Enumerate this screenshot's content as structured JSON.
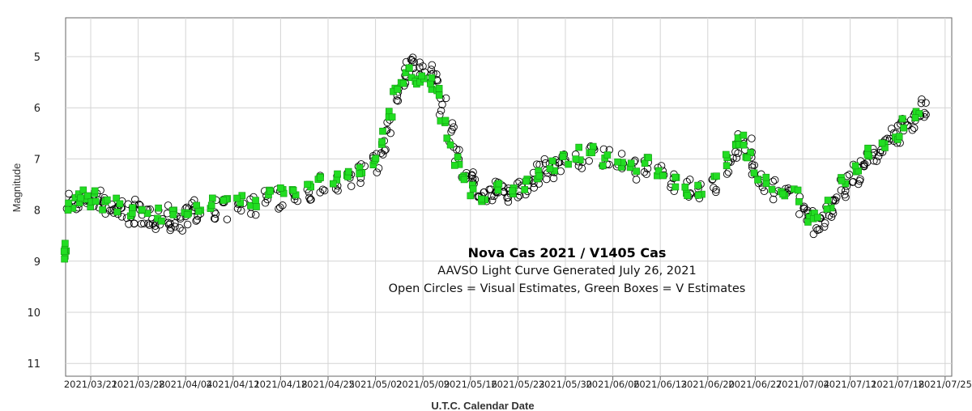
{
  "chart_data": {
    "type": "scatter",
    "title": "Nova Cas 2021 / V1405 Cas",
    "subtitle": "AAVSO Light Curve Generated July 26, 2021",
    "legend_text": "Open Circles = Visual Estimates, Green Boxes = V Estimates",
    "xlabel": "U.T.C. Calendar Date",
    "ylabel": "Magnitude",
    "y_inverted": true,
    "ylim": [
      11.3,
      4.4
    ],
    "xlim": [
      "2021-03-17",
      "2021-07-22"
    ],
    "grid": true,
    "y_ticks": [
      5,
      6,
      7,
      8,
      9,
      10,
      11
    ],
    "x_ticks": [
      "2021/03/21",
      "2021/03/28",
      "2021/04/04",
      "2021/04/11",
      "2021/04/18",
      "2021/04/25",
      "2021/05/02",
      "2021/05/09",
      "2021/05/16",
      "2021/05/23",
      "2021/05/30",
      "2021/06/06",
      "2021/06/13",
      "2021/06/20",
      "2021/06/27",
      "2021/07/04",
      "2021/07/11",
      "2021/07/18",
      "2021/07/25"
    ],
    "series": [
      {
        "name": "Visual Estimates",
        "marker": "open-circle",
        "color": "#000000",
        "points": [
          [
            "2021-03-18",
            7.8
          ],
          [
            "2021-03-19",
            7.9
          ],
          [
            "2021-03-20",
            7.7
          ],
          [
            "2021-03-21",
            7.9
          ],
          [
            "2021-03-22",
            7.8
          ],
          [
            "2021-03-23",
            7.9
          ],
          [
            "2021-03-24",
            8.0
          ],
          [
            "2021-03-25",
            8.0
          ],
          [
            "2021-03-26",
            8.0
          ],
          [
            "2021-03-27",
            8.1
          ],
          [
            "2021-03-28",
            8.0
          ],
          [
            "2021-03-29",
            8.1
          ],
          [
            "2021-03-30",
            8.1
          ],
          [
            "2021-03-31",
            8.2
          ],
          [
            "2021-04-01",
            8.1
          ],
          [
            "2021-04-02",
            8.3
          ],
          [
            "2021-04-03",
            8.2
          ],
          [
            "2021-04-04",
            8.1
          ],
          [
            "2021-04-05",
            8.0
          ],
          [
            "2021-04-06",
            8.1
          ],
          [
            "2021-04-08",
            8.0
          ],
          [
            "2021-04-10",
            8.0
          ],
          [
            "2021-04-12",
            7.9
          ],
          [
            "2021-04-14",
            7.9
          ],
          [
            "2021-04-16",
            7.8
          ],
          [
            "2021-04-18",
            7.8
          ],
          [
            "2021-04-20",
            7.7
          ],
          [
            "2021-04-22",
            7.6
          ],
          [
            "2021-04-24",
            7.5
          ],
          [
            "2021-04-26",
            7.5
          ],
          [
            "2021-04-28",
            7.4
          ],
          [
            "2021-04-30",
            7.3
          ],
          [
            "2021-05-02",
            7.1
          ],
          [
            "2021-05-03",
            6.8
          ],
          [
            "2021-05-04",
            6.4
          ],
          [
            "2021-05-05",
            5.8
          ],
          [
            "2021-05-06",
            5.4
          ],
          [
            "2021-05-07",
            5.2
          ],
          [
            "2021-05-08",
            5.3
          ],
          [
            "2021-05-09",
            5.3
          ],
          [
            "2021-05-10",
            5.3
          ],
          [
            "2021-05-11",
            5.5
          ],
          [
            "2021-05-12",
            6.0
          ],
          [
            "2021-05-13",
            6.5
          ],
          [
            "2021-05-14",
            6.9
          ],
          [
            "2021-05-15",
            7.2
          ],
          [
            "2021-05-16",
            7.4
          ],
          [
            "2021-05-17",
            7.6
          ],
          [
            "2021-05-18",
            7.7
          ],
          [
            "2021-05-19",
            7.7
          ],
          [
            "2021-05-20",
            7.6
          ],
          [
            "2021-05-21",
            7.7
          ],
          [
            "2021-05-22",
            7.7
          ],
          [
            "2021-05-23",
            7.6
          ],
          [
            "2021-05-24",
            7.6
          ],
          [
            "2021-05-25",
            7.4
          ],
          [
            "2021-05-26",
            7.3
          ],
          [
            "2021-05-27",
            7.2
          ],
          [
            "2021-05-28",
            7.2
          ],
          [
            "2021-05-29",
            7.1
          ],
          [
            "2021-05-30",
            7.0
          ],
          [
            "2021-06-01",
            7.0
          ],
          [
            "2021-06-03",
            6.9
          ],
          [
            "2021-06-05",
            7.0
          ],
          [
            "2021-06-07",
            7.1
          ],
          [
            "2021-06-09",
            7.2
          ],
          [
            "2021-06-11",
            7.1
          ],
          [
            "2021-06-13",
            7.3
          ],
          [
            "2021-06-15",
            7.5
          ],
          [
            "2021-06-17",
            7.6
          ],
          [
            "2021-06-19",
            7.7
          ],
          [
            "2021-06-21",
            7.5
          ],
          [
            "2021-06-23",
            7.1
          ],
          [
            "2021-06-24",
            6.8
          ],
          [
            "2021-06-25",
            6.6
          ],
          [
            "2021-06-26",
            6.8
          ],
          [
            "2021-06-27",
            7.2
          ],
          [
            "2021-06-28",
            7.5
          ],
          [
            "2021-06-30",
            7.6
          ],
          [
            "2021-07-02",
            7.7
          ],
          [
            "2021-07-04",
            7.9
          ],
          [
            "2021-07-05",
            8.2
          ],
          [
            "2021-07-06",
            8.3
          ],
          [
            "2021-07-07",
            8.2
          ],
          [
            "2021-07-08",
            8.0
          ],
          [
            "2021-07-09",
            7.8
          ],
          [
            "2021-07-10",
            7.6
          ],
          [
            "2021-07-11",
            7.5
          ],
          [
            "2021-07-12",
            7.3
          ],
          [
            "2021-07-13",
            7.1
          ],
          [
            "2021-07-14",
            7.0
          ],
          [
            "2021-07-15",
            6.9
          ],
          [
            "2021-07-16",
            6.8
          ],
          [
            "2021-07-17",
            6.6
          ],
          [
            "2021-07-18",
            6.5
          ],
          [
            "2021-07-19",
            6.4
          ],
          [
            "2021-07-20",
            6.3
          ],
          [
            "2021-07-21",
            6.1
          ],
          [
            "2021-07-22",
            6.0
          ]
        ]
      },
      {
        "name": "V Estimates",
        "marker": "filled-square",
        "color": "#22dd22",
        "points": [
          [
            "2021-03-17",
            8.7
          ],
          [
            "2021-03-17",
            8.9
          ],
          [
            "2021-03-18",
            7.9
          ],
          [
            "2021-03-19",
            7.8
          ],
          [
            "2021-03-20",
            7.7
          ],
          [
            "2021-03-21",
            7.8
          ],
          [
            "2021-03-22",
            7.7
          ],
          [
            "2021-03-23",
            7.9
          ],
          [
            "2021-03-25",
            7.9
          ],
          [
            "2021-03-27",
            8.0
          ],
          [
            "2021-03-29",
            8.0
          ],
          [
            "2021-03-31",
            8.1
          ],
          [
            "2021-04-02",
            8.0
          ],
          [
            "2021-04-04",
            8.0
          ],
          [
            "2021-04-06",
            7.9
          ],
          [
            "2021-04-08",
            7.9
          ],
          [
            "2021-04-10",
            7.9
          ],
          [
            "2021-04-12",
            7.8
          ],
          [
            "2021-04-14",
            7.8
          ],
          [
            "2021-04-16",
            7.7
          ],
          [
            "2021-04-18",
            7.7
          ],
          [
            "2021-04-20",
            7.6
          ],
          [
            "2021-04-22",
            7.5
          ],
          [
            "2021-04-24",
            7.4
          ],
          [
            "2021-04-26",
            7.4
          ],
          [
            "2021-04-28",
            7.3
          ],
          [
            "2021-04-30",
            7.2
          ],
          [
            "2021-05-02",
            7.0
          ],
          [
            "2021-05-03",
            6.6
          ],
          [
            "2021-05-04",
            6.2
          ],
          [
            "2021-05-05",
            5.7
          ],
          [
            "2021-05-06",
            5.4
          ],
          [
            "2021-05-07",
            5.3
          ],
          [
            "2021-05-08",
            5.4
          ],
          [
            "2021-05-09",
            5.4
          ],
          [
            "2021-05-10",
            5.5
          ],
          [
            "2021-05-11",
            5.7
          ],
          [
            "2021-05-12",
            6.2
          ],
          [
            "2021-05-13",
            6.7
          ],
          [
            "2021-05-14",
            7.1
          ],
          [
            "2021-05-15",
            7.4
          ],
          [
            "2021-05-16",
            7.6
          ],
          [
            "2021-05-18",
            7.7
          ],
          [
            "2021-05-20",
            7.6
          ],
          [
            "2021-05-22",
            7.6
          ],
          [
            "2021-05-24",
            7.5
          ],
          [
            "2021-05-26",
            7.3
          ],
          [
            "2021-05-28",
            7.1
          ],
          [
            "2021-05-30",
            7.0
          ],
          [
            "2021-06-01",
            6.9
          ],
          [
            "2021-06-03",
            6.9
          ],
          [
            "2021-06-05",
            7.0
          ],
          [
            "2021-06-07",
            7.1
          ],
          [
            "2021-06-09",
            7.1
          ],
          [
            "2021-06-11",
            7.0
          ],
          [
            "2021-06-13",
            7.3
          ],
          [
            "2021-06-15",
            7.5
          ],
          [
            "2021-06-17",
            7.6
          ],
          [
            "2021-06-19",
            7.6
          ],
          [
            "2021-06-21",
            7.4
          ],
          [
            "2021-06-23",
            7.0
          ],
          [
            "2021-06-24",
            6.7
          ],
          [
            "2021-06-25",
            6.6
          ],
          [
            "2021-06-26",
            6.9
          ],
          [
            "2021-06-27",
            7.3
          ],
          [
            "2021-06-29",
            7.5
          ],
          [
            "2021-07-01",
            7.6
          ],
          [
            "2021-07-03",
            7.7
          ],
          [
            "2021-07-05",
            8.1
          ],
          [
            "2021-07-06",
            8.2
          ],
          [
            "2021-07-08",
            7.9
          ],
          [
            "2021-07-10",
            7.5
          ],
          [
            "2021-07-12",
            7.2
          ],
          [
            "2021-07-14",
            6.9
          ],
          [
            "2021-07-16",
            6.8
          ],
          [
            "2021-07-18",
            6.5
          ],
          [
            "2021-07-19",
            6.3
          ],
          [
            "2021-07-21",
            6.1
          ]
        ]
      }
    ]
  }
}
